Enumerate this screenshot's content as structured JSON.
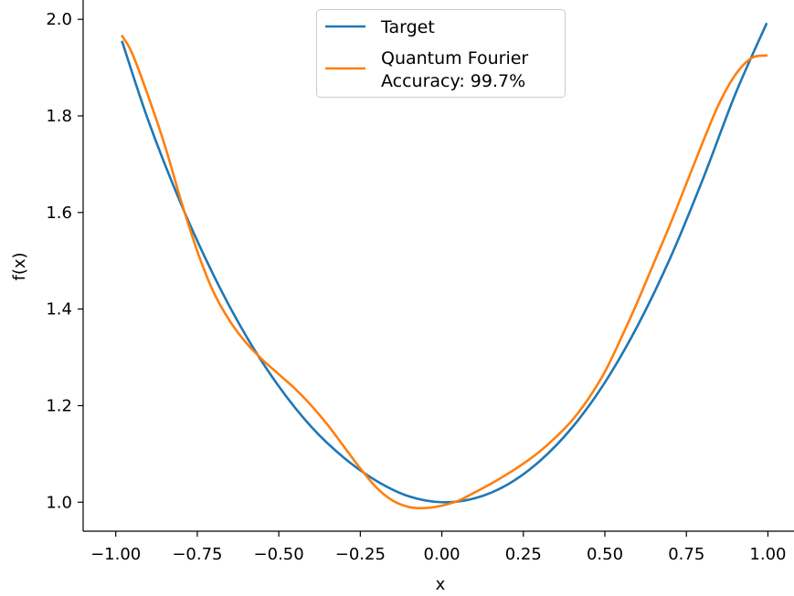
{
  "chart_data": {
    "type": "line",
    "title": "",
    "xlabel": "x",
    "ylabel": "f(x)",
    "xlim": [
      -1.1,
      1.08
    ],
    "ylim": [
      0.94,
      2.04
    ],
    "xticks": [
      -1.0,
      -0.75,
      -0.5,
      -0.25,
      0.0,
      0.25,
      0.5,
      0.75,
      1.0
    ],
    "xtick_labels": [
      "−1.00",
      "−0.75",
      "−0.50",
      "−0.25",
      "0.00",
      "0.25",
      "0.50",
      "0.75",
      "1.00"
    ],
    "yticks": [
      1.0,
      1.2,
      1.4,
      1.6,
      1.8,
      2.0
    ],
    "ytick_labels": [
      "1.0",
      "1.2",
      "1.4",
      "1.6",
      "1.8",
      "2.0"
    ],
    "grid": false,
    "legend_position": "top-center",
    "series": [
      {
        "name": "Target",
        "color": "#1f77b4",
        "x": [
          -0.98,
          -0.9,
          -0.8,
          -0.7,
          -0.6,
          -0.5,
          -0.4,
          -0.3,
          -0.2,
          -0.1,
          0.0,
          0.1,
          0.2,
          0.3,
          0.4,
          0.5,
          0.6,
          0.7,
          0.8,
          0.9,
          0.995
        ],
        "y": [
          1.953,
          1.79,
          1.618,
          1.47,
          1.344,
          1.24,
          1.156,
          1.092,
          1.044,
          1.012,
          1.0,
          1.008,
          1.036,
          1.085,
          1.155,
          1.248,
          1.365,
          1.505,
          1.668,
          1.845,
          1.99
        ]
      },
      {
        "name": "Quantum Fourier\nAccuracy: 99.7%",
        "color": "#ff7f0e",
        "x": [
          -0.98,
          -0.95,
          -0.9,
          -0.85,
          -0.8,
          -0.75,
          -0.7,
          -0.65,
          -0.6,
          -0.55,
          -0.5,
          -0.45,
          -0.4,
          -0.35,
          -0.3,
          -0.25,
          -0.2,
          -0.15,
          -0.1,
          -0.05,
          0.0,
          0.05,
          0.1,
          0.15,
          0.2,
          0.25,
          0.3,
          0.35,
          0.4,
          0.45,
          0.5,
          0.55,
          0.6,
          0.65,
          0.7,
          0.75,
          0.8,
          0.85,
          0.9,
          0.95,
          0.995
        ],
        "y": [
          1.965,
          1.93,
          1.84,
          1.74,
          1.625,
          1.52,
          1.435,
          1.375,
          1.33,
          1.295,
          1.265,
          1.235,
          1.2,
          1.16,
          1.115,
          1.07,
          1.03,
          1.003,
          0.99,
          0.988,
          0.993,
          1.003,
          1.02,
          1.038,
          1.058,
          1.08,
          1.105,
          1.135,
          1.17,
          1.215,
          1.27,
          1.34,
          1.415,
          1.495,
          1.575,
          1.66,
          1.745,
          1.825,
          1.885,
          1.92,
          1.925
        ]
      }
    ]
  }
}
